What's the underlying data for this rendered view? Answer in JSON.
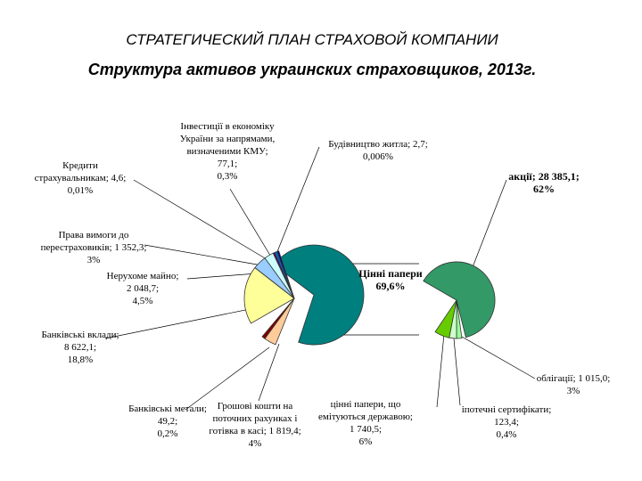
{
  "page": {
    "title": "СТРАТЕГИЧЕСКИЙ ПЛАН СТРАХОВОЙ КОМПАНИИ",
    "subtitle": "Структура активов украинских страховщиков, 2013г."
  },
  "chart_data": [
    {
      "type": "pie",
      "title": "Структура активов украинских страховщиков, 2013г.",
      "slices": [
        {
          "name": "Цінні папери",
          "label_lines": [
            "Цінні папери",
            "69,6%"
          ],
          "value": 69.6,
          "color": "#007f7f",
          "exploded": true
        },
        {
          "name": "Банківські вклади",
          "label_lines": [
            "Банківські вклади;",
            "8 622,1;",
            "18,8%"
          ],
          "value": 18.8,
          "color": "#ffff99"
        },
        {
          "name": "Нерухоме майно",
          "label_lines": [
            "Нерухоме майно;",
            "2 048,7;",
            "4,5%"
          ],
          "value": 4.5,
          "color": "#99ccff"
        },
        {
          "name": "Права вимоги до перестраховиків",
          "label_lines": [
            "Права вимоги до",
            "перестраховиків; 1 352,3;",
            "3%"
          ],
          "value": 3.0,
          "color": "#ccffff"
        },
        {
          "name": "Кредити страхувальникам",
          "label_lines": [
            "Кредити",
            "страхувальникам; 4,6;",
            "0,01%"
          ],
          "value": 0.01,
          "color": "#660066"
        },
        {
          "name": "Інвестиції в економіку України",
          "label_lines": [
            "Інвестиції в економіку",
            "України за напрямами,",
            "визначеними КМУ;",
            "77,1;",
            "0,3%"
          ],
          "value": 0.3,
          "color": "#0066cc"
        },
        {
          "name": "Будівництво житла",
          "label_lines": [
            "Будівництво житла; 2,7;",
            "0,006%"
          ],
          "value": 0.006,
          "color": "#000080"
        },
        {
          "name": "Банківські метали",
          "label_lines": [
            "Банківські метали;",
            "49,2;",
            "0,2%"
          ],
          "value": 0.2,
          "color": "#800000"
        },
        {
          "name": "Грошові кошти",
          "label_lines": [
            "Грошові кошти на",
            "поточних рахунках і",
            "готівка в касі; 1 819,4;",
            "4%"
          ],
          "value": 4.0,
          "color": "#ffcc99"
        }
      ]
    },
    {
      "type": "pie",
      "title": "Цінні папери",
      "slices": [
        {
          "name": "акції",
          "label_lines": [
            "акції; 28 385,1;",
            "62%"
          ],
          "value": 62,
          "color": "#339966"
        },
        {
          "name": "цінні папери, що емітуються державою",
          "label_lines": [
            "цінні папери, що",
            "емітуються державою;",
            "1 740,5;",
            "6%"
          ],
          "value": 6,
          "color": "#66cc00"
        },
        {
          "name": "іпотечні сертифікати",
          "label_lines": [
            "іпотечні сертифікати;",
            "123,4;",
            "0,4%"
          ],
          "value": 0.4,
          "color": "#99ff99"
        },
        {
          "name": "облігації",
          "label_lines": [
            "облігації; 1 015,0;",
            "3%"
          ],
          "value": 3,
          "color": "#ccffcc"
        }
      ]
    }
  ]
}
